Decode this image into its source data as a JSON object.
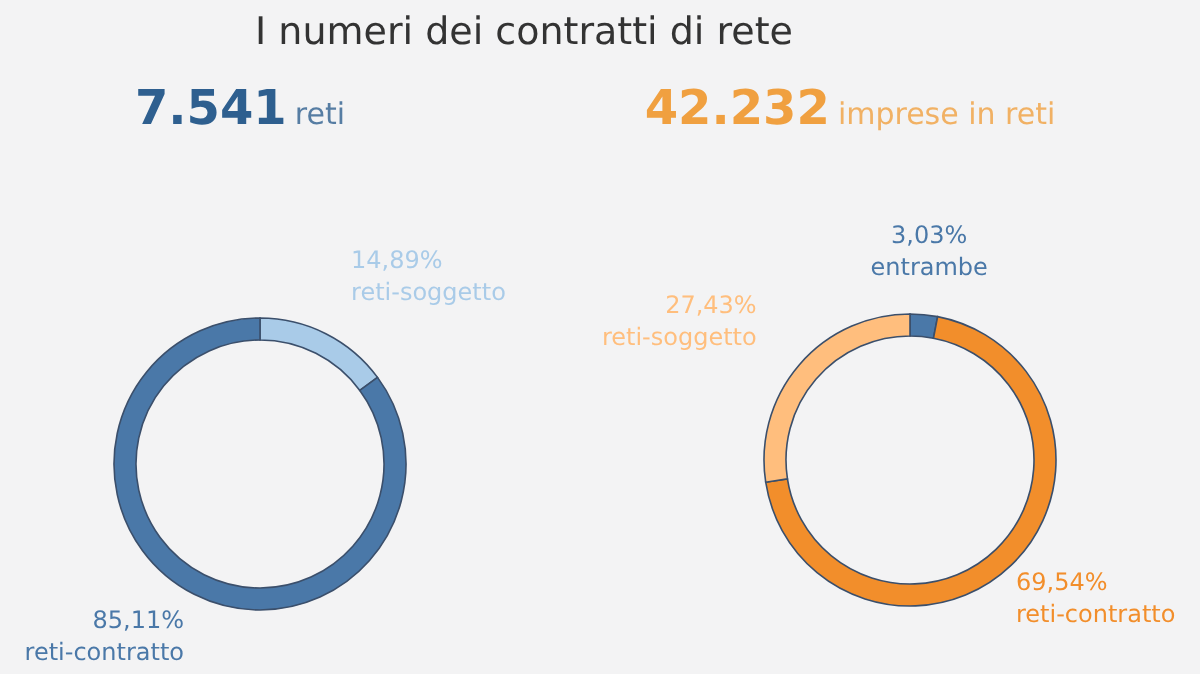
{
  "chart_data": [
    {
      "type": "donut",
      "title": "I numeri dei contratti di rete",
      "subtitle": "7.541 reti",
      "categories": [
        "reti-soggetto",
        "reti-contratto"
      ],
      "values": [
        14.89,
        85.11
      ],
      "colors": [
        "#a9cbe8",
        "#4a78a8"
      ],
      "value_labels": [
        "14,89%",
        "85,11%"
      ]
    },
    {
      "type": "donut",
      "subtitle": "42.232 imprese in reti",
      "categories": [
        "entrambe",
        "reti-contratto",
        "reti-soggetto"
      ],
      "values": [
        3.03,
        69.54,
        27.43
      ],
      "colors": [
        "#4a78a8",
        "#f28e2b",
        "#ffbe7d"
      ],
      "value_labels": [
        "3,03%",
        "69,54%",
        "27,43%"
      ]
    }
  ]
}
